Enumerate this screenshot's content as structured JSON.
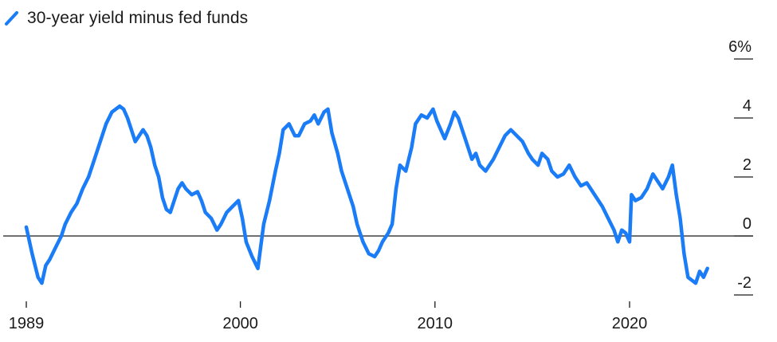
{
  "chart_data": {
    "type": "line",
    "legend": {
      "position": "top-left"
    },
    "series": [
      {
        "name": "30-year yield minus fed funds",
        "color": "#1a7cf6",
        "points": [
          [
            1989.0,
            0.3
          ],
          [
            1989.3,
            -0.6
          ],
          [
            1989.6,
            -1.4
          ],
          [
            1989.8,
            -1.6
          ],
          [
            1990.0,
            -1.0
          ],
          [
            1990.2,
            -0.8
          ],
          [
            1990.5,
            -0.4
          ],
          [
            1990.8,
            0.0
          ],
          [
            1991.0,
            0.4
          ],
          [
            1991.3,
            0.8
          ],
          [
            1991.6,
            1.1
          ],
          [
            1991.9,
            1.6
          ],
          [
            1992.2,
            2.0
          ],
          [
            1992.5,
            2.6
          ],
          [
            1992.8,
            3.2
          ],
          [
            1993.1,
            3.8
          ],
          [
            1993.4,
            4.2
          ],
          [
            1993.6,
            4.3
          ],
          [
            1993.8,
            4.4
          ],
          [
            1994.0,
            4.3
          ],
          [
            1994.2,
            4.0
          ],
          [
            1994.4,
            3.6
          ],
          [
            1994.6,
            3.2
          ],
          [
            1994.8,
            3.4
          ],
          [
            1995.0,
            3.6
          ],
          [
            1995.2,
            3.4
          ],
          [
            1995.4,
            3.0
          ],
          [
            1995.6,
            2.4
          ],
          [
            1995.8,
            2.0
          ],
          [
            1996.0,
            1.3
          ],
          [
            1996.2,
            0.9
          ],
          [
            1996.4,
            0.8
          ],
          [
            1996.6,
            1.2
          ],
          [
            1996.8,
            1.6
          ],
          [
            1997.0,
            1.8
          ],
          [
            1997.2,
            1.6
          ],
          [
            1997.5,
            1.4
          ],
          [
            1997.8,
            1.5
          ],
          [
            1998.0,
            1.2
          ],
          [
            1998.2,
            0.8
          ],
          [
            1998.5,
            0.6
          ],
          [
            1998.8,
            0.2
          ],
          [
            1999.0,
            0.4
          ],
          [
            1999.3,
            0.8
          ],
          [
            1999.6,
            1.0
          ],
          [
            1999.9,
            1.2
          ],
          [
            2000.1,
            0.6
          ],
          [
            2000.3,
            -0.2
          ],
          [
            2000.6,
            -0.7
          ],
          [
            2000.9,
            -1.1
          ],
          [
            2001.0,
            -0.6
          ],
          [
            2001.2,
            0.4
          ],
          [
            2001.5,
            1.2
          ],
          [
            2001.8,
            2.2
          ],
          [
            2002.0,
            2.8
          ],
          [
            2002.2,
            3.6
          ],
          [
            2002.5,
            3.8
          ],
          [
            2002.8,
            3.4
          ],
          [
            2003.0,
            3.4
          ],
          [
            2003.3,
            3.8
          ],
          [
            2003.6,
            3.9
          ],
          [
            2003.8,
            4.1
          ],
          [
            2004.0,
            3.8
          ],
          [
            2004.3,
            4.2
          ],
          [
            2004.5,
            4.3
          ],
          [
            2004.7,
            3.5
          ],
          [
            2005.0,
            2.8
          ],
          [
            2005.2,
            2.2
          ],
          [
            2005.5,
            1.6
          ],
          [
            2005.8,
            1.0
          ],
          [
            2006.0,
            0.4
          ],
          [
            2006.3,
            -0.2
          ],
          [
            2006.6,
            -0.6
          ],
          [
            2006.9,
            -0.7
          ],
          [
            2007.1,
            -0.5
          ],
          [
            2007.3,
            -0.2
          ],
          [
            2007.6,
            0.1
          ],
          [
            2007.8,
            0.4
          ],
          [
            2008.0,
            1.6
          ],
          [
            2008.2,
            2.4
          ],
          [
            2008.5,
            2.2
          ],
          [
            2008.8,
            3.0
          ],
          [
            2009.0,
            3.8
          ],
          [
            2009.3,
            4.1
          ],
          [
            2009.6,
            4.0
          ],
          [
            2009.9,
            4.3
          ],
          [
            2010.1,
            3.9
          ],
          [
            2010.3,
            3.6
          ],
          [
            2010.5,
            3.3
          ],
          [
            2010.8,
            3.8
          ],
          [
            2011.0,
            4.2
          ],
          [
            2011.2,
            4.0
          ],
          [
            2011.4,
            3.6
          ],
          [
            2011.6,
            3.2
          ],
          [
            2011.9,
            2.6
          ],
          [
            2012.1,
            2.8
          ],
          [
            2012.3,
            2.4
          ],
          [
            2012.6,
            2.2
          ],
          [
            2013.0,
            2.6
          ],
          [
            2013.3,
            3.0
          ],
          [
            2013.6,
            3.4
          ],
          [
            2013.9,
            3.6
          ],
          [
            2014.2,
            3.4
          ],
          [
            2014.5,
            3.2
          ],
          [
            2014.8,
            2.8
          ],
          [
            2015.0,
            2.6
          ],
          [
            2015.3,
            2.4
          ],
          [
            2015.5,
            2.8
          ],
          [
            2015.8,
            2.6
          ],
          [
            2016.0,
            2.2
          ],
          [
            2016.3,
            2.0
          ],
          [
            2016.6,
            2.1
          ],
          [
            2016.9,
            2.4
          ],
          [
            2017.2,
            2.0
          ],
          [
            2017.5,
            1.7
          ],
          [
            2017.8,
            1.8
          ],
          [
            2018.0,
            1.6
          ],
          [
            2018.3,
            1.3
          ],
          [
            2018.6,
            1.0
          ],
          [
            2018.9,
            0.6
          ],
          [
            2019.2,
            0.2
          ],
          [
            2019.4,
            -0.2
          ],
          [
            2019.6,
            0.2
          ],
          [
            2019.8,
            0.1
          ],
          [
            2020.0,
            -0.2
          ],
          [
            2020.1,
            1.4
          ],
          [
            2020.3,
            1.2
          ],
          [
            2020.6,
            1.3
          ],
          [
            2020.9,
            1.6
          ],
          [
            2021.2,
            2.1
          ],
          [
            2021.4,
            1.9
          ],
          [
            2021.7,
            1.6
          ],
          [
            2022.0,
            2.0
          ],
          [
            2022.2,
            2.4
          ],
          [
            2022.4,
            1.4
          ],
          [
            2022.6,
            0.6
          ],
          [
            2022.8,
            -0.6
          ],
          [
            2023.0,
            -1.4
          ],
          [
            2023.2,
            -1.5
          ],
          [
            2023.4,
            -1.6
          ],
          [
            2023.6,
            -1.2
          ],
          [
            2023.8,
            -1.4
          ],
          [
            2024.0,
            -1.1
          ]
        ]
      }
    ],
    "x_ticks": [
      "1989",
      "2000",
      "2010",
      "2020"
    ],
    "xlim": [
      1988.0,
      2026.0
    ],
    "y_ticks": [
      "6%",
      "4",
      "2",
      "0",
      "-2"
    ],
    "ylim": [
      -2.8,
      7.0
    ],
    "zero_line": true,
    "grid": false
  }
}
